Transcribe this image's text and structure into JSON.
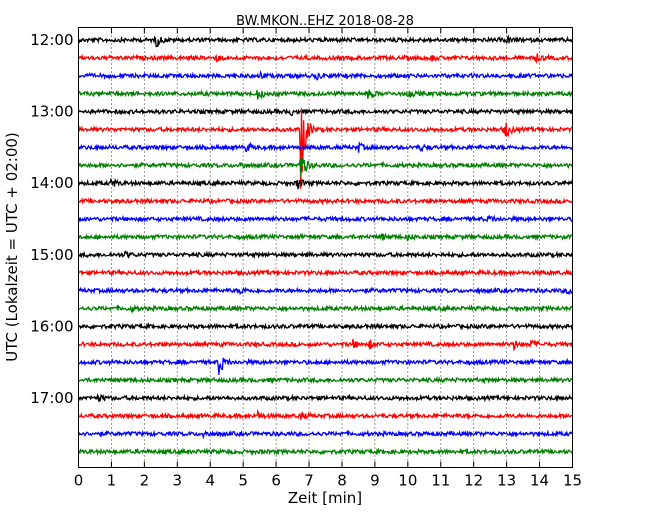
{
  "chart_data": {
    "type": "line",
    "title": "BW.MKON..EHZ 2018-08-28",
    "xlabel": "Zeit  [min]",
    "ylabel": "UTC (Lokalzeit = UTC + 02:00)",
    "xlim": [
      0,
      15
    ],
    "xticks": [
      "0",
      "1",
      "2",
      "3",
      "4",
      "5",
      "6",
      "7",
      "8",
      "9",
      "10",
      "11",
      "12",
      "13",
      "14",
      "15"
    ],
    "yticks": [
      {
        "label": "12:00",
        "row": 0
      },
      {
        "label": "13:00",
        "row": 4
      },
      {
        "label": "14:00",
        "row": 8
      },
      {
        "label": "15:00",
        "row": 12
      },
      {
        "label": "16:00",
        "row": 16
      },
      {
        "label": "17:00",
        "row": 20
      }
    ],
    "grid_x": true,
    "row_interval_min": 15,
    "color_cycle": [
      "#000000",
      "#ff0000",
      "#0000ff",
      "#008000"
    ],
    "series": [
      {
        "start": "12:00",
        "events": [
          {
            "t": 2.35,
            "a": 7
          },
          {
            "t": 13.0,
            "a": 3
          }
        ]
      },
      {
        "start": "12:15",
        "events": [
          {
            "t": 4.2,
            "a": 3
          },
          {
            "t": 10.7,
            "a": 3
          },
          {
            "t": 13.9,
            "a": 3
          }
        ]
      },
      {
        "start": "12:30",
        "events": [
          {
            "t": 5.5,
            "a": 3
          },
          {
            "t": 7.2,
            "a": 3
          }
        ]
      },
      {
        "start": "12:45",
        "events": [
          {
            "t": 5.45,
            "a": 6
          },
          {
            "t": 8.8,
            "a": 5
          },
          {
            "t": 10.0,
            "a": 4
          }
        ]
      },
      {
        "start": "13:00",
        "events": [
          {
            "t": 6.45,
            "a": 3
          }
        ]
      },
      {
        "start": "13:15",
        "events": [
          {
            "t": 6.75,
            "a": 62
          },
          {
            "t": 12.95,
            "a": 10
          }
        ]
      },
      {
        "start": "13:30",
        "events": [
          {
            "t": 5.1,
            "a": 5
          },
          {
            "t": 8.5,
            "a": 4
          },
          {
            "t": 10.4,
            "a": 3
          }
        ]
      },
      {
        "start": "13:45",
        "events": [
          {
            "t": 4.9,
            "a": 4
          },
          {
            "t": 6.75,
            "a": 16
          }
        ]
      },
      {
        "start": "14:00",
        "events": [
          {
            "t": 1.0,
            "a": 4
          },
          {
            "t": 6.65,
            "a": 6
          }
        ]
      },
      {
        "start": "14:15",
        "events": []
      },
      {
        "start": "14:30",
        "events": [
          {
            "t": 12.45,
            "a": 4
          }
        ]
      },
      {
        "start": "14:45",
        "events": [
          {
            "t": 9.2,
            "a": 3
          },
          {
            "t": 10.0,
            "a": 3
          }
        ]
      },
      {
        "start": "15:00",
        "events": [
          {
            "t": 1.4,
            "a": 3
          }
        ]
      },
      {
        "start": "15:15",
        "events": []
      },
      {
        "start": "15:30",
        "events": [
          {
            "t": 4.9,
            "a": 3
          },
          {
            "t": 14.85,
            "a": 3
          }
        ]
      },
      {
        "start": "15:45",
        "events": [
          {
            "t": 1.6,
            "a": 3
          }
        ]
      },
      {
        "start": "16:00",
        "events": []
      },
      {
        "start": "16:15",
        "events": [
          {
            "t": 8.3,
            "a": 5
          },
          {
            "t": 8.85,
            "a": 4
          },
          {
            "t": 13.2,
            "a": 5
          },
          {
            "t": 13.7,
            "a": 4
          }
        ]
      },
      {
        "start": "16:30",
        "events": [
          {
            "t": 4.25,
            "a": 15
          }
        ]
      },
      {
        "start": "16:45",
        "events": []
      },
      {
        "start": "17:00",
        "events": [
          {
            "t": 0.6,
            "a": 3
          }
        ]
      },
      {
        "start": "17:15",
        "events": [
          {
            "t": 5.45,
            "a": 4
          },
          {
            "t": 6.7,
            "a": 5
          }
        ]
      },
      {
        "start": "17:30",
        "events": [
          {
            "t": 3.8,
            "a": 3
          }
        ]
      },
      {
        "start": "17:45",
        "events": []
      }
    ]
  }
}
